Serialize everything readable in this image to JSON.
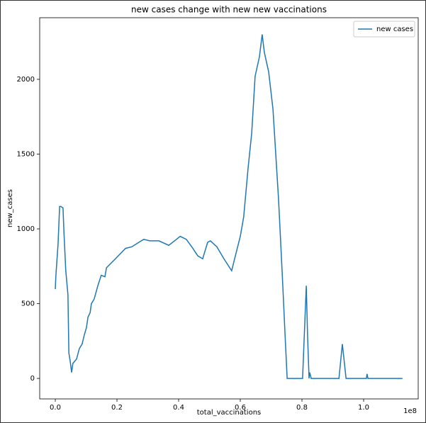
{
  "chart_data": {
    "type": "line",
    "title": "new cases change with new new vaccinations",
    "x_label": "total_vaccinations",
    "y_label": "new_cases",
    "x_offset_label": "1e8",
    "legend": "upper right",
    "xlim": [
      -0.0506,
      1.177
    ],
    "ylim": [
      -137,
      2412
    ],
    "xticks": [
      {
        "value": 0,
        "label": "0.0"
      },
      {
        "value": 0.2,
        "label": "0.2"
      },
      {
        "value": 0.4,
        "label": "0.4"
      },
      {
        "value": 0.6,
        "label": "0.6"
      },
      {
        "value": 0.8,
        "label": "0.8"
      },
      {
        "value": 1,
        "label": "1.0"
      }
    ],
    "yticks": [
      0,
      500,
      1000,
      1500,
      2000
    ],
    "x": [
      0,
      0.002,
      0.009,
      0.014,
      0.018,
      0.025,
      0.028,
      0.034,
      0.041,
      0.044,
      0.048,
      0.053,
      0.057,
      0.069,
      0.078,
      0.087,
      0.094,
      0.101,
      0.106,
      0.113,
      0.117,
      0.126,
      0.138,
      0.149,
      0.161,
      0.166,
      0.195,
      0.228,
      0.248,
      0.271,
      0.287,
      0.306,
      0.336,
      0.368,
      0.393,
      0.405,
      0.425,
      0.446,
      0.462,
      0.478,
      0.494,
      0.503,
      0.524,
      0.547,
      0.572,
      0.584,
      0.6,
      0.611,
      0.625,
      0.637,
      0.648,
      0.662,
      0.671,
      0.678,
      0.692,
      0.706,
      0.724,
      0.736,
      0.745,
      0.752,
      0.802,
      0.814,
      0.818,
      0.823,
      0.825,
      0.83,
      0.92,
      0.931,
      0.943,
      1.009,
      1.011,
      1.014,
      1.126
    ],
    "series": [
      {
        "name": "new cases",
        "color": "#1f77b4",
        "values": [
          597,
          690,
          900,
          1150,
          1150,
          1140,
          980,
          720,
          560,
          170,
          120,
          40,
          100,
          130,
          200,
          230,
          290,
          340,
          410,
          440,
          500,
          530,
          620,
          690,
          680,
          740,
          800,
          870,
          880,
          910,
          930,
          920,
          920,
          890,
          930,
          950,
          930,
          870,
          820,
          800,
          910,
          920,
          880,
          800,
          720,
          820,
          950,
          1080,
          1400,
          1640,
          2020,
          2150,
          2300,
          2180,
          2050,
          1800,
          1200,
          700,
          300,
          0,
          0,
          620,
          300,
          0,
          40,
          0,
          0,
          230,
          0,
          0,
          30,
          0,
          0
        ]
      }
    ]
  }
}
